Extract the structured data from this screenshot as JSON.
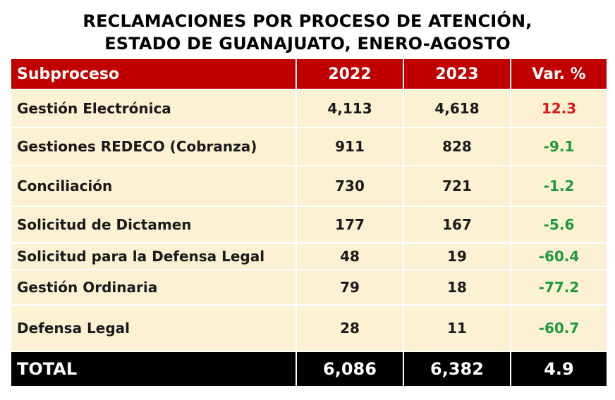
{
  "title": {
    "line1": "RECLAMACIONES POR PROCESO DE ATENCIÓN,",
    "line2": "ESTADO DE GUANAJUATO, ENERO-AGOSTO"
  },
  "table": {
    "headers": [
      "Subproceso",
      "2022",
      "2023",
      "Var. %"
    ],
    "rows": [
      {
        "subproceso": "Gestión Electrónica",
        "y2022": "4,113",
        "y2023": "4,618",
        "var": "12.3"
      },
      {
        "subproceso": "Gestiones REDECO (Cobranza)",
        "y2022": "911",
        "y2023": "828",
        "var": "-9.1"
      },
      {
        "subproceso": "Conciliación",
        "y2022": "730",
        "y2023": "721",
        "var": "-1.2"
      },
      {
        "subproceso": "Solicitud de Dictamen",
        "y2022": "177",
        "y2023": "167",
        "var": "-5.6"
      },
      {
        "subproceso": "Solicitud para la Defensa Legal",
        "y2022": "48",
        "y2023": "19",
        "var": "-60.4"
      },
      {
        "subproceso": "Gestión Ordinaria",
        "y2022": "79",
        "y2023": "18",
        "var": "-77.2"
      },
      {
        "subproceso": "Defensa Legal",
        "y2022": "28",
        "y2023": "11",
        "var": "-60.7"
      }
    ],
    "total": {
      "label": "TOTAL",
      "y2022": "6,086",
      "y2023": "6,382",
      "var": "4.9"
    }
  },
  "colors": {
    "header_bg": "#c00000",
    "row_bg": "#fdf1d4",
    "total_bg": "#000000",
    "positive": "#e01818",
    "negative": "#1e9a3c"
  }
}
